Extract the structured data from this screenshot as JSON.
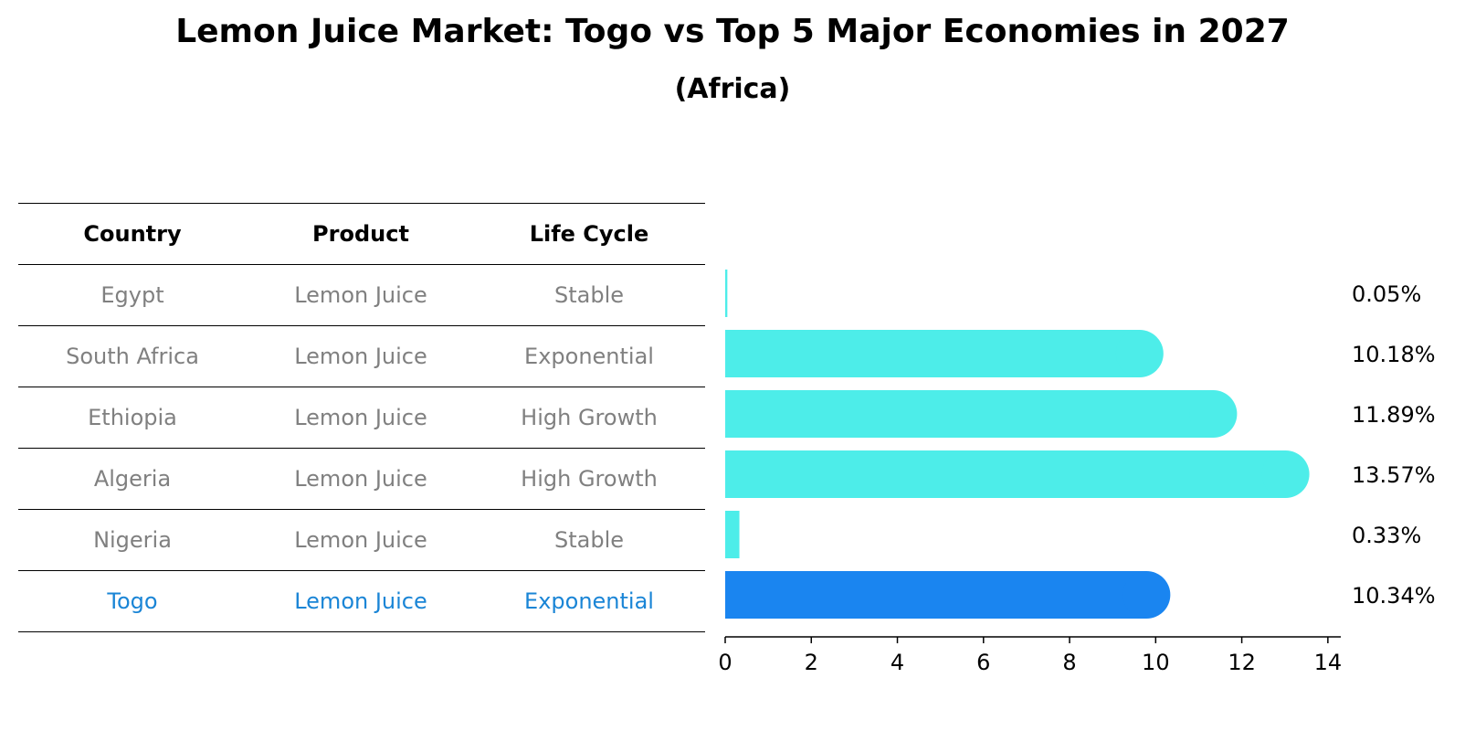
{
  "title": "Lemon Juice Market: Togo vs Top 5 Major Economies in 2027",
  "subtitle": "(Africa)",
  "table": {
    "headers": [
      "Country",
      "Product",
      "Life Cycle"
    ],
    "rows": [
      {
        "country": "Egypt",
        "product": "Lemon Juice",
        "life_cycle": "Stable"
      },
      {
        "country": "South Africa",
        "product": "Lemon Juice",
        "life_cycle": "Exponential"
      },
      {
        "country": "Ethiopia",
        "product": "Lemon Juice",
        "life_cycle": "High Growth"
      },
      {
        "country": "Algeria",
        "product": "Lemon Juice",
        "life_cycle": "High Growth"
      },
      {
        "country": "Nigeria",
        "product": "Lemon Juice",
        "life_cycle": "Stable"
      },
      {
        "country": "Togo",
        "product": "Lemon Juice",
        "life_cycle": "Exponential"
      }
    ]
  },
  "chart_data": {
    "type": "bar",
    "orientation": "horizontal",
    "categories": [
      "Egypt",
      "South Africa",
      "Ethiopia",
      "Algeria",
      "Nigeria",
      "Togo"
    ],
    "values": [
      0.05,
      10.18,
      11.89,
      13.57,
      0.33,
      10.34
    ],
    "value_labels": [
      "0.05%",
      "10.18%",
      "11.89%",
      "13.57%",
      "0.33%",
      "10.34%"
    ],
    "xlim": [
      0,
      14.3
    ],
    "xticks": [
      0,
      2,
      4,
      6,
      8,
      10,
      12,
      14
    ],
    "colors": {
      "default": "#4dede9",
      "highlight": "#1a85f0"
    },
    "highlight_category": "Togo"
  }
}
